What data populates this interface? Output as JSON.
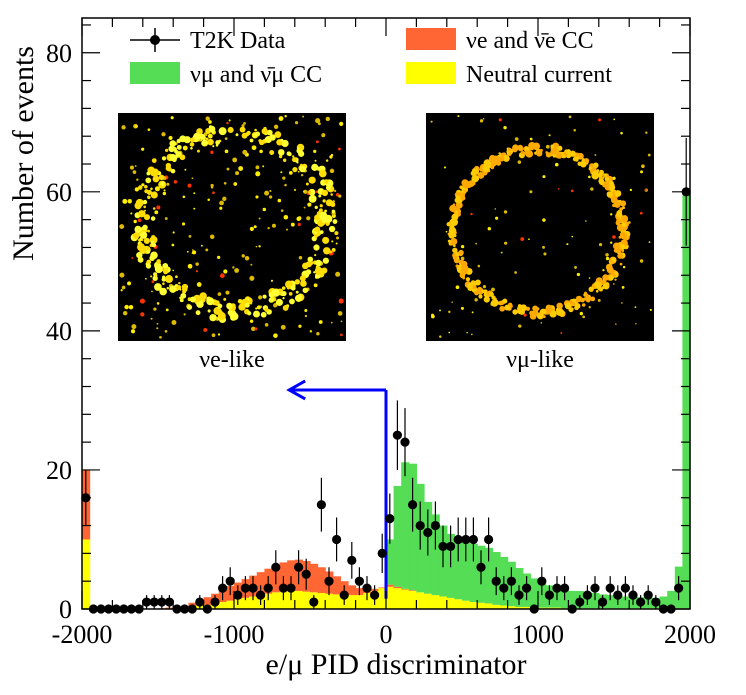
{
  "chart_data": {
    "type": "bar",
    "xlabel": "e/μ PID discriminator",
    "ylabel": "Number of events",
    "xlim": [
      -2000,
      2000
    ],
    "ylim": [
      0,
      85
    ],
    "xticks": [
      -2000,
      -1000,
      0,
      1000,
      2000
    ],
    "yticks": [
      0,
      20,
      40,
      60,
      80
    ],
    "xtick_labels": [
      "-2000",
      "-1000",
      "0",
      "1000",
      "2000"
    ],
    "ytick_labels": [
      "0",
      "20",
      "40",
      "60",
      "80"
    ],
    "bin_width": 50,
    "bin_centers": [
      -1975,
      -1925,
      -1875,
      -1825,
      -1775,
      -1725,
      -1675,
      -1625,
      -1575,
      -1525,
      -1475,
      -1425,
      -1375,
      -1325,
      -1275,
      -1225,
      -1175,
      -1125,
      -1075,
      -1025,
      -975,
      -925,
      -875,
      -825,
      -775,
      -725,
      -675,
      -625,
      -575,
      -525,
      -475,
      -425,
      -375,
      -325,
      -275,
      -225,
      -175,
      -125,
      -75,
      -25,
      25,
      75,
      125,
      175,
      225,
      275,
      325,
      375,
      425,
      475,
      525,
      575,
      625,
      675,
      725,
      775,
      825,
      875,
      925,
      975,
      1025,
      1075,
      1125,
      1175,
      1225,
      1275,
      1325,
      1375,
      1425,
      1475,
      1525,
      1575,
      1625,
      1675,
      1725,
      1775,
      1825,
      1875,
      1925,
      1975
    ],
    "series": [
      {
        "name": "Neutral current",
        "color": "#ffff00",
        "values": [
          10,
          0,
          0,
          0,
          0,
          0,
          0,
          0,
          0,
          0,
          0,
          0,
          0,
          0,
          0.3,
          0.5,
          0.6,
          0.8,
          1,
          1.2,
          1.4,
          1.6,
          1.8,
          2,
          2.2,
          2.4,
          2.5,
          2.6,
          2.6,
          2.5,
          2.4,
          2.3,
          2.2,
          2.1,
          2,
          2,
          2,
          2.3,
          2.6,
          3,
          3.2,
          3,
          2.8,
          2.6,
          2.4,
          2.2,
          2,
          1.8,
          1.6,
          1.4,
          1.2,
          1,
          0.9,
          0.8,
          0.6,
          0.5,
          0.4,
          0.3,
          0.3,
          0.2,
          0.2,
          0.2,
          0.2,
          0.1,
          0.1,
          0.1,
          0.1,
          0.1,
          0.1,
          0.1,
          0.1,
          0.1,
          0.1,
          0.1,
          0.1,
          0.1,
          0.1,
          0.1,
          0.1,
          0.1
        ]
      },
      {
        "name": "νe and ν̄e CC",
        "color": "#ff6633",
        "values": [
          10,
          0,
          0,
          0,
          0,
          0,
          0,
          0,
          0,
          0,
          0.1,
          0.2,
          0.3,
          0.4,
          0.6,
          0.8,
          1.1,
          1.4,
          1.8,
          2.1,
          2.4,
          2.7,
          3,
          3.3,
          3.6,
          3.9,
          4.2,
          4.4,
          4.5,
          4.4,
          4.1,
          3.7,
          3.2,
          2.6,
          2,
          1.4,
          1,
          0.6,
          0.3,
          0.1,
          0.3,
          0.2,
          0.1,
          0.1,
          0,
          0,
          0,
          0,
          0,
          0,
          0,
          0,
          0,
          0,
          0,
          0,
          0,
          0,
          0,
          0,
          0,
          0,
          0,
          0,
          0,
          0,
          0,
          0,
          0,
          0,
          0,
          0,
          0,
          0,
          0,
          0,
          0,
          0,
          0,
          0
        ]
      },
      {
        "name": "νμ and ν̄μ CC",
        "color": "#55dd55",
        "values": [
          0,
          0,
          0,
          0,
          0,
          0,
          0,
          0,
          0,
          0,
          0,
          0,
          0,
          0,
          0,
          0,
          0,
          0,
          0,
          0,
          0,
          0,
          0,
          0,
          0,
          0,
          0,
          0,
          0,
          0,
          0,
          0,
          0,
          0,
          0,
          0,
          0,
          0,
          0,
          0,
          6.5,
          14.5,
          18.2,
          18.2,
          15.6,
          13.2,
          11.6,
          10.2,
          9.2,
          8.6,
          8.4,
          8.4,
          8.2,
          8,
          7.6,
          7,
          6.4,
          5.6,
          4.8,
          4.2,
          3.6,
          3.2,
          2.8,
          2.6,
          2.5,
          2.5,
          2.3,
          2.2,
          2,
          1.9,
          1.8,
          1.7,
          1.7,
          1.6,
          1.5,
          1.5,
          1.7,
          2.5,
          6,
          60
        ]
      }
    ],
    "data_points": {
      "name": "T2K Data",
      "color": "#000000",
      "x": [
        -1975,
        -1925,
        -1875,
        -1825,
        -1775,
        -1725,
        -1675,
        -1625,
        -1575,
        -1525,
        -1475,
        -1425,
        -1375,
        -1325,
        -1275,
        -1225,
        -1175,
        -1125,
        -1075,
        -1025,
        -975,
        -925,
        -875,
        -825,
        -775,
        -725,
        -675,
        -625,
        -575,
        -525,
        -475,
        -425,
        -375,
        -325,
        -275,
        -225,
        -175,
        -125,
        -75,
        -25,
        25,
        75,
        125,
        175,
        225,
        275,
        325,
        375,
        425,
        475,
        525,
        575,
        625,
        675,
        725,
        775,
        825,
        875,
        925,
        975,
        1025,
        1075,
        1125,
        1175,
        1225,
        1275,
        1325,
        1375,
        1425,
        1475,
        1525,
        1575,
        1625,
        1675,
        1725,
        1775,
        1825,
        1875,
        1925,
        1975
      ],
      "y": [
        16,
        0,
        0,
        0,
        0,
        0,
        0,
        0,
        1,
        1,
        1,
        1,
        0,
        0,
        0,
        1,
        0,
        1,
        3,
        4,
        2,
        3,
        3,
        2,
        3,
        6,
        3,
        3,
        6,
        5,
        1,
        15,
        4,
        10,
        2,
        7,
        4,
        3,
        2,
        8,
        13,
        25,
        24,
        15,
        12,
        11,
        12,
        9,
        9,
        10,
        10,
        10,
        6,
        10,
        4,
        3,
        4,
        2,
        3,
        0,
        4,
        2,
        3,
        3,
        0,
        1,
        2,
        3,
        1,
        3,
        2,
        3,
        2,
        1,
        2,
        1,
        0,
        0,
        3,
        60
      ]
    },
    "legend": {
      "placement": "top",
      "entries": [
        {
          "label": "T2K Data",
          "marker": "point",
          "color": "#000000"
        },
        {
          "label": "νe and ν̄e CC",
          "marker": "box",
          "color": "#ff6633"
        },
        {
          "label": "νμ and ν̄μ CC",
          "marker": "box",
          "color": "#55dd55"
        },
        {
          "label": "Neutral current",
          "marker": "box",
          "color": "#ffff00"
        }
      ]
    },
    "annotations": {
      "cut_value": 0,
      "arrow_color": "#0000ff",
      "arrow_tip_x": -650,
      "arrow_level_y": 31.5,
      "arrow_label_y": 1.5
    },
    "insets": [
      {
        "caption": "νe-like",
        "ring": "diffuse",
        "background": "#000000"
      },
      {
        "caption": "νμ-like",
        "ring": "sharp",
        "background": "#000000"
      }
    ]
  }
}
